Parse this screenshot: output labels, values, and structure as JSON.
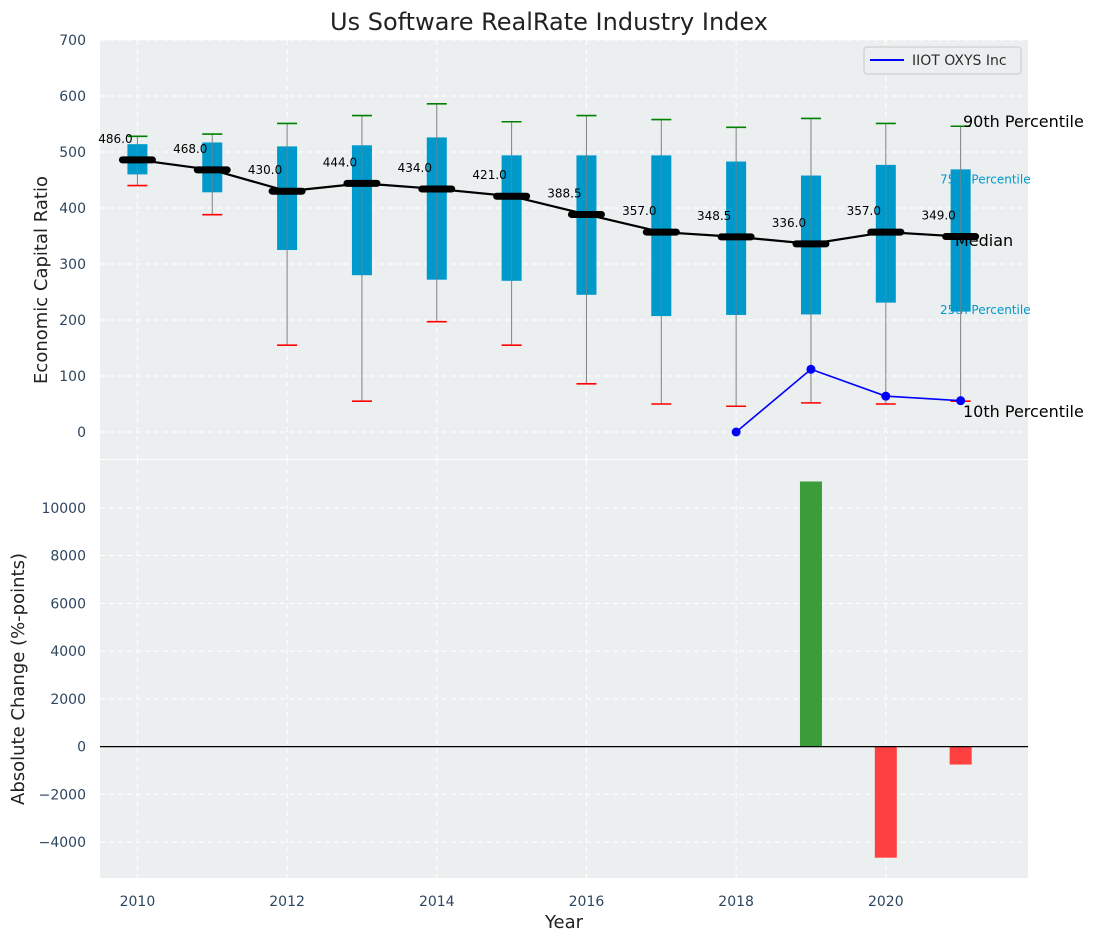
{
  "title": "Us Software RealRate Industry Index",
  "colors": {
    "panel_bg": "#ebeff0",
    "grid": "#ffffff",
    "box": "#0099cc",
    "whisker": "#808080",
    "median": "#000000",
    "cap_top": "#008000",
    "cap_bottom": "#ff0000",
    "company": "#0000ff",
    "bar_pos": "#3a9d3a",
    "bar_neg": "#ff4040"
  },
  "chart_data": [
    {
      "type": "box",
      "ylabel": "Economic Capital Ratio",
      "ylim": [
        -50,
        700
      ],
      "yticks": [
        0,
        100,
        200,
        300,
        400,
        500,
        600,
        700
      ],
      "xlim": [
        2009.5,
        2021.9
      ],
      "grid": true,
      "legend": {
        "placement": "top-right",
        "entries": [
          "IIOT OXYS Inc"
        ]
      },
      "years": [
        2010,
        2011,
        2012,
        2013,
        2014,
        2015,
        2016,
        2017,
        2018,
        2019,
        2020,
        2021
      ],
      "p10": [
        440,
        388,
        155,
        55,
        197,
        155,
        86,
        50,
        46,
        52,
        50,
        55
      ],
      "p25": [
        460,
        428,
        325,
        280,
        272,
        270,
        245,
        207,
        209,
        210,
        231,
        215
      ],
      "median": [
        486.0,
        468.0,
        430.0,
        444.0,
        434.0,
        421.0,
        388.5,
        357.0,
        348.5,
        336.0,
        357.0,
        349.0
      ],
      "median_labels": [
        "486.0",
        "468.0",
        "430.0",
        "444.0",
        "434.0",
        "421.0",
        "388.5",
        "357.0",
        "348.5",
        "336.0",
        "357.0",
        "349.0"
      ],
      "p75": [
        514,
        517,
        510,
        512,
        526,
        494,
        494,
        494,
        483,
        458,
        477,
        469
      ],
      "p90": [
        528,
        532,
        551,
        565,
        586,
        554,
        565,
        558,
        544,
        560,
        551,
        546
      ],
      "series": [
        {
          "name": "IIOT OXYS Inc",
          "x": [
            2018,
            2019,
            2020,
            2021
          ],
          "values": [
            0,
            112,
            64,
            56
          ]
        }
      ],
      "annotations": [
        "90th Percentile",
        "75th Percentile",
        "Median",
        "25th Percentile",
        "10th Percentile"
      ]
    },
    {
      "type": "bar",
      "xlabel": "Year",
      "ylabel": "Absolute Change (%-points)",
      "ylim": [
        -5500,
        12000
      ],
      "yticks": [
        -4000,
        -2000,
        0,
        2000,
        4000,
        6000,
        8000,
        10000
      ],
      "ytick_labels": [
        "−4000",
        "−2000",
        "0",
        "2000",
        "4000",
        "6000",
        "8000",
        "10000"
      ],
      "xticks": [
        2010,
        2012,
        2014,
        2016,
        2018,
        2020
      ],
      "x": [
        2019,
        2020,
        2021
      ],
      "values": [
        11100,
        -4650,
        -750
      ],
      "grid": true
    }
  ]
}
